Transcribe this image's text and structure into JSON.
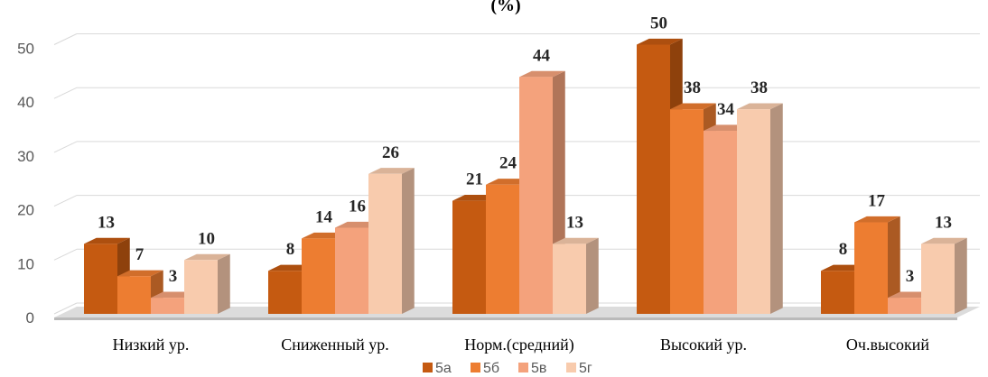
{
  "chart_data": {
    "type": "bar",
    "title": "(%)",
    "categories": [
      "Низкий ур.",
      "Сниженный ур.",
      "Норм.(средний)",
      "Высокий ур.",
      "Оч.высокий"
    ],
    "series": [
      {
        "name": "5а",
        "values": [
          13,
          8,
          21,
          50,
          8
        ],
        "color": "#c55a11"
      },
      {
        "name": "5б",
        "values": [
          7,
          14,
          24,
          38,
          17
        ],
        "color": "#ed7d31"
      },
      {
        "name": "5в",
        "values": [
          3,
          16,
          44,
          34,
          3
        ],
        "color": "#f4a27c"
      },
      {
        "name": "5г",
        "values": [
          10,
          26,
          13,
          38,
          13
        ],
        "color": "#f8cbad"
      }
    ],
    "yticks": [
      0,
      10,
      20,
      30,
      40,
      50
    ],
    "ylim": [
      0,
      50
    ],
    "grid": true,
    "three_d": true,
    "legend_position": "bottom"
  }
}
